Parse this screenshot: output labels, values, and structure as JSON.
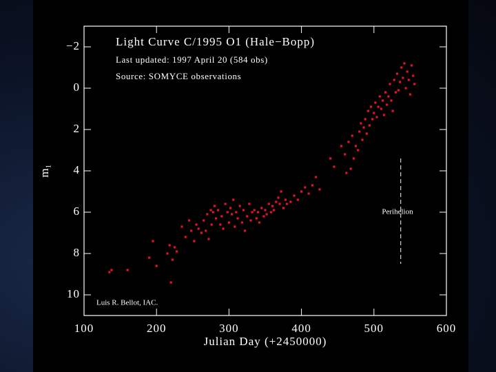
{
  "chart_data": {
    "type": "scatter",
    "title": "Light Curve C/1995 O1 (Hale−Bopp)",
    "subtitle": "Last updated: 1997 April 20 (584 obs)",
    "source": "Source: SOMYCE observations",
    "credit": "Luis R. Bellot, IAC.",
    "x_label": "Julian Day (+2450000)",
    "y_label": "m₁",
    "color": "#e3132c",
    "xlim": [
      100,
      600
    ],
    "xticks": [
      100,
      200,
      300,
      400,
      500,
      600
    ],
    "ylim": [
      11,
      -3
    ],
    "yticks": [
      {
        "value": -2,
        "label": "−2"
      },
      0,
      2,
      4,
      6,
      8,
      10
    ],
    "annotation": {
      "text": "Perihelion",
      "x": 537,
      "y": [
        3.4,
        8.5
      ]
    },
    "x": [
      135,
      138,
      160,
      190,
      195,
      200,
      215,
      218,
      220,
      222,
      225,
      228,
      235,
      240,
      245,
      248,
      252,
      255,
      258,
      262,
      265,
      268,
      270,
      272,
      275,
      276,
      278,
      280,
      282,
      285,
      288,
      290,
      292,
      295,
      298,
      300,
      302,
      304,
      306,
      308,
      310,
      312,
      315,
      318,
      320,
      322,
      325,
      328,
      330,
      332,
      335,
      338,
      340,
      342,
      345,
      348,
      350,
      352,
      355,
      358,
      360,
      362,
      365,
      368,
      370,
      372,
      375,
      378,
      380,
      385,
      390,
      395,
      400,
      405,
      410,
      415,
      420,
      425,
      440,
      445,
      455,
      460,
      462,
      465,
      468,
      470,
      472,
      475,
      478,
      480,
      482,
      484,
      486,
      488,
      490,
      492,
      494,
      496,
      498,
      500,
      502,
      504,
      506,
      508,
      510,
      512,
      514,
      516,
      518,
      520,
      522,
      524,
      526,
      528,
      530,
      532,
      534,
      536,
      538,
      540,
      542,
      544,
      546,
      548,
      550,
      552,
      554,
      556
    ],
    "values": [
      8.9,
      8.8,
      8.8,
      8.2,
      7.4,
      8.6,
      8.0,
      7.6,
      9.4,
      8.3,
      7.7,
      7.9,
      6.7,
      7.2,
      6.4,
      6.9,
      7.4,
      6.6,
      6.8,
      7.0,
      6.4,
      6.9,
      6.1,
      7.3,
      5.9,
      6.6,
      6.0,
      5.7,
      6.3,
      5.9,
      6.6,
      6.2,
      6.8,
      5.6,
      6.0,
      6.5,
      5.8,
      6.1,
      5.4,
      6.7,
      6.0,
      6.3,
      5.7,
      6.5,
      5.9,
      6.9,
      6.2,
      5.6,
      6.4,
      6.0,
      5.9,
      6.3,
      6.0,
      6.5,
      5.8,
      6.2,
      5.9,
      6.1,
      5.6,
      6.0,
      5.7,
      5.9,
      5.5,
      5.3,
      5.6,
      5.0,
      5.8,
      5.4,
      5.6,
      5.5,
      5.2,
      5.4,
      5.0,
      4.8,
      5.1,
      4.7,
      4.3,
      4.9,
      3.4,
      3.8,
      2.8,
      3.2,
      4.1,
      2.6,
      3.9,
      2.3,
      3.4,
      2.8,
      3.0,
      2.1,
      1.7,
      2.5,
      1.9,
      1.5,
      2.2,
      1.1,
      1.8,
      0.9,
      1.5,
      1.2,
      0.7,
      1.4,
      0.9,
      0.4,
      1.0,
      0.6,
      1.3,
      0.2,
      0.8,
      0.4,
      -0.2,
      0.6,
      1.1,
      -0.4,
      0.2,
      -0.7,
      0.1,
      -0.3,
      -1.0,
      -0.5,
      -1.2,
      0.0,
      -0.8,
      -0.4,
      0.3,
      -1.1,
      -0.6,
      -0.2
    ]
  }
}
